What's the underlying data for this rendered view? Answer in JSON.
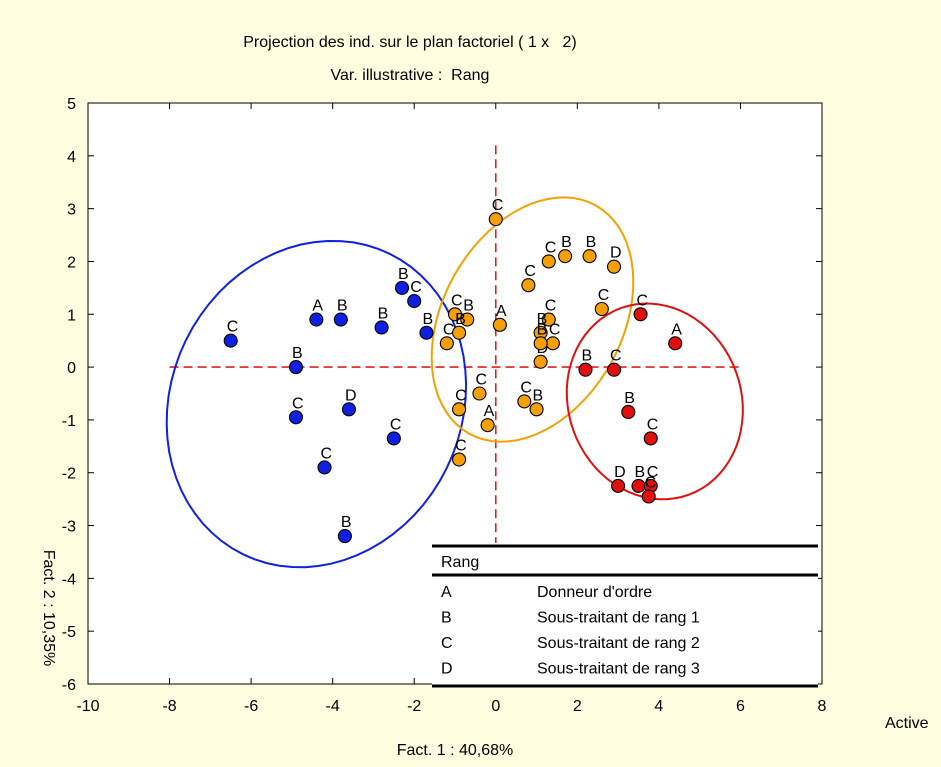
{
  "chart_data": {
    "type": "scatter",
    "title": "Projection des ind. sur le plan factoriel ( 1 x   2)",
    "subtitle": "Var. illustrative :  Rang",
    "xlabel": "Fact. 1 : 40,68%",
    "ylabel": "Fact. 2 : 10,35%",
    "corner_label": "Active",
    "xlim": [
      -10,
      8
    ],
    "ylim": [
      -6,
      5
    ],
    "xticks": [
      -10,
      -8,
      -6,
      -4,
      -2,
      0,
      2,
      4,
      6,
      8
    ],
    "yticks": [
      -6,
      -5,
      -4,
      -3,
      -2,
      -1,
      0,
      1,
      2,
      3,
      4,
      5
    ],
    "grid": false,
    "reference_lines": {
      "x": 0,
      "y": 0,
      "color": "#e0201c",
      "style": "dashed"
    },
    "colors": {
      "blue": "#1020e0",
      "orange": "#f5a000",
      "red": "#e01010",
      "background": "#fffee0"
    },
    "series": [
      {
        "color": "blue",
        "points": [
          {
            "x": -6.5,
            "y": 0.5,
            "label": "C"
          },
          {
            "x": -4.9,
            "y": 0.0,
            "label": "B"
          },
          {
            "x": -4.4,
            "y": 0.9,
            "label": "A"
          },
          {
            "x": -3.8,
            "y": 0.9,
            "label": "B"
          },
          {
            "x": -2.8,
            "y": 0.75,
            "label": "B"
          },
          {
            "x": -2.3,
            "y": 1.5,
            "label": "B"
          },
          {
            "x": -2.0,
            "y": 1.25,
            "label": "C"
          },
          {
            "x": -1.7,
            "y": 0.65,
            "label": "B"
          },
          {
            "x": -4.9,
            "y": -0.95,
            "label": "C"
          },
          {
            "x": -3.6,
            "y": -0.8,
            "label": "D"
          },
          {
            "x": -2.5,
            "y": -1.35,
            "label": "C"
          },
          {
            "x": -4.2,
            "y": -1.9,
            "label": "C"
          },
          {
            "x": -3.7,
            "y": -3.2,
            "label": "B"
          }
        ],
        "ellipse": {
          "cx": -4.4,
          "cy": -0.7,
          "rx": 4.1,
          "ry": 2.75,
          "angle_deg": -64
        }
      },
      {
        "color": "orange",
        "points": [
          {
            "x": 0.0,
            "y": 2.8,
            "label": "C"
          },
          {
            "x": 1.3,
            "y": 2.0,
            "label": "C"
          },
          {
            "x": 1.7,
            "y": 2.1,
            "label": "B"
          },
          {
            "x": 2.3,
            "y": 2.1,
            "label": "B"
          },
          {
            "x": 2.9,
            "y": 1.9,
            "label": "D"
          },
          {
            "x": 0.8,
            "y": 1.55,
            "label": "C"
          },
          {
            "x": 2.6,
            "y": 1.1,
            "label": "C"
          },
          {
            "x": -1.0,
            "y": 1.0,
            "label": "C"
          },
          {
            "x": -0.7,
            "y": 0.9,
            "label": "B"
          },
          {
            "x": -1.2,
            "y": 0.45,
            "label": "C"
          },
          {
            "x": -0.9,
            "y": 0.65,
            "label": "B"
          },
          {
            "x": 0.1,
            "y": 0.8,
            "label": "A"
          },
          {
            "x": 1.3,
            "y": 0.9,
            "label": "C"
          },
          {
            "x": 1.1,
            "y": 0.65,
            "label": "B"
          },
          {
            "x": 1.4,
            "y": 0.45,
            "label": "C"
          },
          {
            "x": 1.1,
            "y": 0.1,
            "label": "D"
          },
          {
            "x": 1.1,
            "y": 0.45,
            "label": "B"
          },
          {
            "x": -0.9,
            "y": -0.8,
            "label": "C"
          },
          {
            "x": -0.4,
            "y": -0.5,
            "label": "C"
          },
          {
            "x": 0.7,
            "y": -0.65,
            "label": "C"
          },
          {
            "x": 1.0,
            "y": -0.8,
            "label": "B"
          },
          {
            "x": -0.2,
            "y": -1.1,
            "label": "A"
          },
          {
            "x": -0.9,
            "y": -1.75,
            "label": "C"
          }
        ],
        "ellipse": {
          "cx": 0.9,
          "cy": 0.9,
          "rx": 3.2,
          "ry": 1.7,
          "angle_deg": -61
        }
      },
      {
        "color": "red",
        "points": [
          {
            "x": 2.2,
            "y": -0.05,
            "label": "B"
          },
          {
            "x": 2.9,
            "y": -0.05,
            "label": "C"
          },
          {
            "x": 3.55,
            "y": 1.0,
            "label": "C"
          },
          {
            "x": 4.4,
            "y": 0.45,
            "label": "A"
          },
          {
            "x": 3.25,
            "y": -0.85,
            "label": "B"
          },
          {
            "x": 3.8,
            "y": -1.35,
            "label": "C"
          },
          {
            "x": 3.0,
            "y": -2.25,
            "label": "D"
          },
          {
            "x": 3.5,
            "y": -2.25,
            "label": "B"
          },
          {
            "x": 3.8,
            "y": -2.25,
            "label": "C"
          },
          {
            "x": 3.75,
            "y": -2.45,
            "label": "C"
          }
        ],
        "ellipse": {
          "cx": 3.9,
          "cy": -0.65,
          "rx": 2.12,
          "ry": 1.88,
          "angle_deg": -20
        }
      }
    ],
    "legend": {
      "title": "Rang",
      "placement": "bottom-right",
      "entries": [
        {
          "code": "A",
          "label": "Donneur d'ordre"
        },
        {
          "code": "B",
          "label": "Sous-traitant de rang 1"
        },
        {
          "code": "C",
          "label": "Sous-traitant de rang 2"
        },
        {
          "code": "D",
          "label": "Sous-traitant de rang 3"
        }
      ]
    }
  }
}
